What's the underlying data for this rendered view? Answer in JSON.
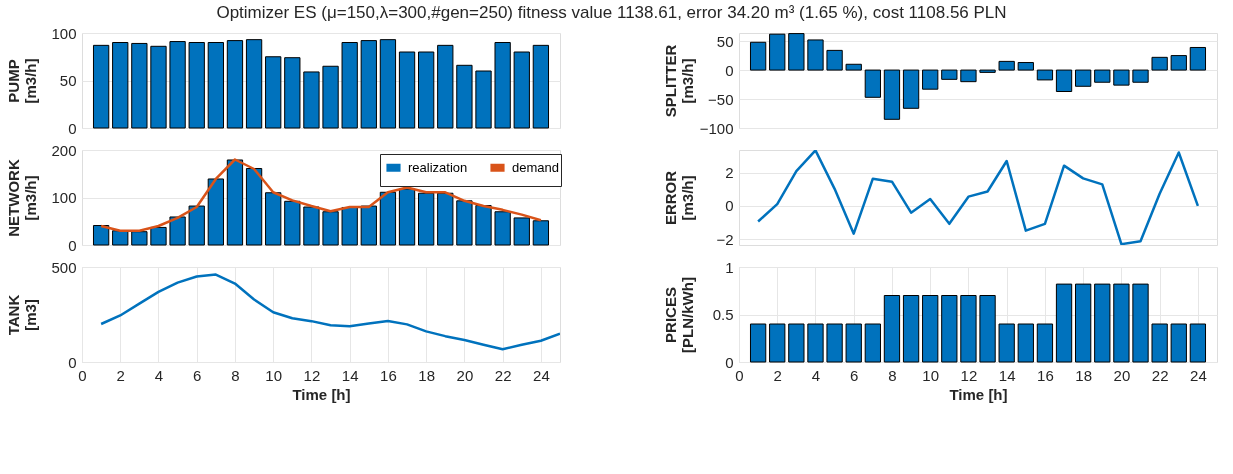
{
  "chart_data": [
    {
      "type": "bar",
      "title": "Optimizer ES (μ=150,λ=300,#gen=250) fitness value 1138.61,  error 34.20 m³ (1.65 %),  cost 1108.56 PLN",
      "ylabel": "PUMP [m3/h]",
      "x": [
        1,
        2,
        3,
        4,
        5,
        6,
        7,
        8,
        9,
        10,
        11,
        12,
        13,
        14,
        15,
        16,
        17,
        18,
        19,
        20,
        21,
        22,
        23,
        24
      ],
      "values": [
        87,
        90,
        89,
        86,
        91,
        90,
        90,
        92,
        93,
        75,
        74,
        59,
        65,
        90,
        92,
        93,
        80,
        80,
        87,
        66,
        60,
        90,
        80,
        87
      ],
      "color": "#0072bd",
      "xlim": [
        0,
        25
      ],
      "xticks": [
        0,
        2,
        4,
        6,
        8,
        10,
        12,
        14,
        16,
        18,
        20,
        22,
        24
      ],
      "ylim": [
        0,
        100
      ],
      "yticks": [
        0,
        50,
        100
      ],
      "grid": "y",
      "tick_labels": "y"
    },
    {
      "type": "bar",
      "ylabel": "SPLITTER [m3/h]",
      "x": [
        1,
        2,
        3,
        4,
        5,
        6,
        7,
        8,
        9,
        10,
        11,
        12,
        13,
        14,
        15,
        16,
        17,
        18,
        19,
        20,
        21,
        22,
        23,
        24
      ],
      "values": [
        48,
        62,
        63,
        52,
        34,
        10,
        -47,
        -85,
        -66,
        -33,
        -16,
        -20,
        -4,
        15,
        13,
        -17,
        -37,
        -28,
        -21,
        -26,
        -21,
        22,
        25,
        39
      ],
      "color": "#0072bd",
      "xlim": [
        0,
        25
      ],
      "xticks": [
        0,
        2,
        4,
        6,
        8,
        10,
        12,
        14,
        16,
        18,
        20,
        22,
        24
      ],
      "ylim": [
        -100,
        64
      ],
      "yticks": [
        -100,
        -50,
        0,
        50
      ],
      "grid": "y",
      "tick_labels": "y"
    },
    {
      "type": "bar",
      "ylabel": "NETWORK [m3/h]",
      "x": [
        1,
        2,
        3,
        4,
        5,
        6,
        7,
        8,
        9,
        10,
        11,
        12,
        13,
        14,
        15,
        16,
        17,
        18,
        19,
        20,
        21,
        22,
        23,
        24
      ],
      "series": [
        {
          "name": "realization",
          "type": "bar",
          "color": "#0072bd",
          "values": [
            41,
            30,
            28,
            37,
            59,
            82,
            139,
            179,
            161,
            110,
            92,
            80,
            70,
            79,
            82,
            111,
            118,
            109,
            109,
            93,
            83,
            70,
            57,
            51
          ]
        },
        {
          "name": "demand",
          "type": "line",
          "color": "#d95319",
          "values": [
            40,
            30,
            30,
            40,
            57,
            80,
            139,
            180,
            160,
            111,
            94,
            82,
            71,
            80,
            80,
            111,
            121,
            111,
            111,
            93,
            82,
            74,
            64,
            52
          ]
        }
      ],
      "legend": "top right",
      "xlim": [
        0,
        25
      ],
      "xticks": [
        0,
        2,
        4,
        6,
        8,
        10,
        12,
        14,
        16,
        18,
        20,
        22,
        24
      ],
      "ylim": [
        0,
        200
      ],
      "yticks": [
        0,
        100,
        200
      ],
      "grid": "y",
      "tick_labels": "y"
    },
    {
      "type": "line",
      "ylabel": "ERROR [m3/h]",
      "x": [
        1,
        2,
        3,
        4,
        5,
        6,
        7,
        8,
        9,
        10,
        11,
        12,
        13,
        14,
        15,
        16,
        17,
        18,
        19,
        20,
        21,
        22,
        23,
        24
      ],
      "values": [
        -0.94,
        0.1,
        2.08,
        3.33,
        1.02,
        -1.67,
        1.63,
        1.45,
        -0.41,
        0.41,
        -1.08,
        0.55,
        0.86,
        2.69,
        -1.49,
        -1.08,
        2.41,
        1.65,
        1.29,
        -2.3,
        -2.12,
        0.73,
        3.2,
        0
      ],
      "color": "#0072bd",
      "xlim": [
        0,
        25
      ],
      "xticks": [
        0,
        2,
        4,
        6,
        8,
        10,
        12,
        14,
        16,
        18,
        20,
        22,
        24
      ],
      "ylim": [
        -2.35,
        3.35
      ],
      "yticks": [
        -2,
        0,
        2
      ],
      "grid": "y",
      "tick_labels": "y"
    },
    {
      "type": "line",
      "ylabel": "TANK [m3]",
      "xlabel": "Time [h]",
      "x": [
        1,
        2,
        3,
        4,
        5,
        6,
        7,
        8,
        9,
        10,
        11,
        12,
        13,
        14,
        15,
        16,
        17,
        18,
        19,
        20,
        21,
        22,
        23,
        24,
        25
      ],
      "values": [
        200,
        245,
        307,
        369,
        418,
        450,
        460,
        413,
        329,
        262,
        230,
        215,
        193,
        188,
        203,
        216,
        198,
        161,
        136,
        116,
        91,
        67,
        91,
        112,
        149
      ],
      "color": "#0072bd",
      "xlim": [
        0,
        25
      ],
      "xticks": [
        0,
        2,
        4,
        6,
        8,
        10,
        12,
        14,
        16,
        18,
        20,
        22,
        24
      ],
      "ylim": [
        0,
        500
      ],
      "yticks": [
        0,
        500
      ],
      "grid": true
    },
    {
      "type": "bar",
      "ylabel": "PRICES [PLN/kWh]",
      "xlabel": "Time [h]",
      "x": [
        1,
        2,
        3,
        4,
        5,
        6,
        7,
        8,
        9,
        10,
        11,
        12,
        13,
        14,
        15,
        16,
        17,
        18,
        19,
        20,
        21,
        22,
        23,
        24
      ],
      "values": [
        0.4,
        0.4,
        0.4,
        0.4,
        0.4,
        0.4,
        0.4,
        0.7,
        0.7,
        0.7,
        0.7,
        0.7,
        0.7,
        0.4,
        0.4,
        0.4,
        0.82,
        0.82,
        0.82,
        0.82,
        0.82,
        0.4,
        0.4,
        0.4
      ],
      "color": "#0072bd",
      "xlim": [
        0,
        25
      ],
      "xticks": [
        0,
        2,
        4,
        6,
        8,
        10,
        12,
        14,
        16,
        18,
        20,
        22,
        24
      ],
      "ylim": [
        0,
        1
      ],
      "yticks": [
        0,
        0.5,
        1
      ],
      "grid": true
    }
  ]
}
